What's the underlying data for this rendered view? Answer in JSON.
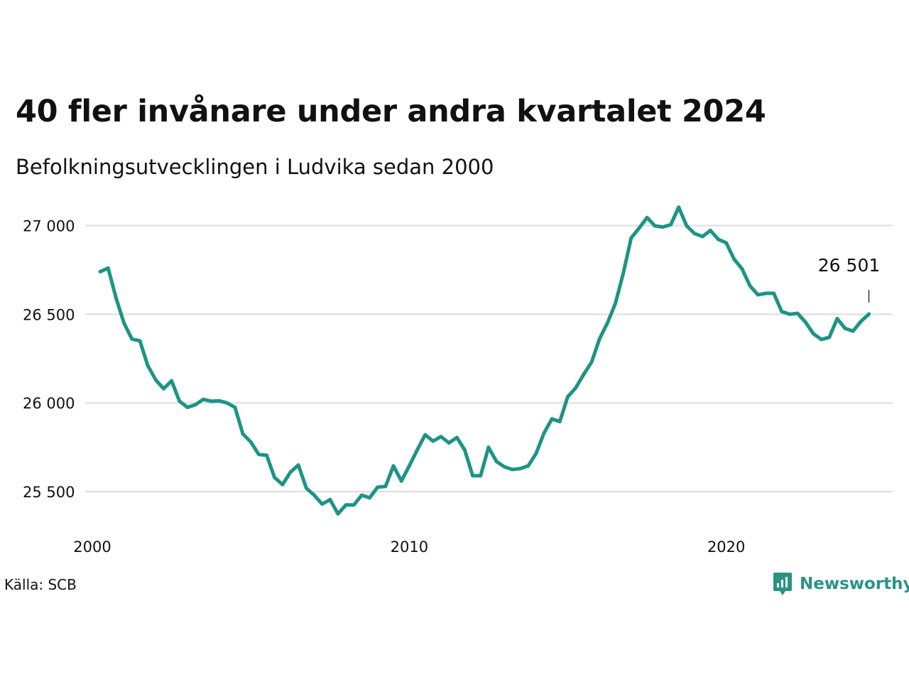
{
  "title": "40 fler invånare under andra kvartalet 2024",
  "subtitle": "Befolkningsutvecklingen i Ludvika sedan 2000",
  "source": "Källa: SCB",
  "brand": "Newsworthy",
  "colors": {
    "line": "#1d9485",
    "grid": "#dddddd",
    "brand": "#2a9384",
    "text": "#111111"
  },
  "chart_data": {
    "type": "line",
    "xlabel": "",
    "ylabel": "",
    "xlim": [
      2000,
      2025.25
    ],
    "ylim": [
      25300,
      27150
    ],
    "x_ticks": [
      2000,
      2010,
      2020
    ],
    "y_ticks": [
      {
        "value": 25500,
        "label": "25 500"
      },
      {
        "value": 26000,
        "label": "26 000"
      },
      {
        "value": 26500,
        "label": "26 500"
      },
      {
        "value": 27000,
        "label": "27 000"
      }
    ],
    "grid": true,
    "end_label": "26 501",
    "series": [
      {
        "x": [
          2000.25,
          2000.5,
          2000.75,
          2001,
          2001.25,
          2001.5,
          2001.75,
          2002,
          2002.25,
          2002.5,
          2002.75,
          2003,
          2003.25,
          2003.5,
          2003.75,
          2004,
          2004.25,
          2004.5,
          2004.75,
          2005,
          2005.25,
          2005.5,
          2005.75,
          2006,
          2006.25,
          2006.5,
          2006.75,
          2007,
          2007.25,
          2007.5,
          2007.75,
          2008,
          2008.25,
          2008.5,
          2008.75,
          2009,
          2009.25,
          2009.5,
          2009.75,
          2010,
          2010.25,
          2010.5,
          2010.75,
          2011,
          2011.25,
          2011.5,
          2011.75,
          2012,
          2012.25,
          2012.5,
          2012.75,
          2013,
          2013.25,
          2013.5,
          2013.75,
          2014,
          2014.25,
          2014.5,
          2014.75,
          2015,
          2015.25,
          2015.5,
          2015.75,
          2016,
          2016.25,
          2016.5,
          2016.75,
          2017,
          2017.25,
          2017.5,
          2017.75,
          2018,
          2018.25,
          2018.5,
          2018.75,
          2019,
          2019.25,
          2019.5,
          2019.75,
          2020,
          2020.25,
          2020.5,
          2020.75,
          2021,
          2021.25,
          2021.5,
          2021.75,
          2022,
          2022.25,
          2022.5,
          2022.75,
          2023,
          2023.25,
          2023.5,
          2023.75,
          2024,
          2024.25,
          2024.5
        ],
        "values": [
          26740,
          26760,
          26590,
          26450,
          26360,
          26350,
          26210,
          26130,
          26080,
          26125,
          26010,
          25975,
          25990,
          26020,
          26010,
          26012,
          26000,
          25975,
          25825,
          25780,
          25710,
          25705,
          25580,
          25540,
          25610,
          25650,
          25520,
          25480,
          25430,
          25455,
          25375,
          25425,
          25425,
          25480,
          25465,
          25525,
          25530,
          25645,
          25560,
          25645,
          25735,
          25820,
          25785,
          25810,
          25775,
          25805,
          25735,
          25590,
          25590,
          25750,
          25670,
          25640,
          25625,
          25630,
          25645,
          25715,
          25830,
          25910,
          25895,
          26035,
          26085,
          26160,
          26230,
          26360,
          26450,
          26560,
          26730,
          26930,
          26985,
          27045,
          26998,
          26992,
          27005,
          27103,
          26998,
          26955,
          26938,
          26972,
          26922,
          26902,
          26810,
          26755,
          26660,
          26610,
          26618,
          26618,
          26515,
          26500,
          26505,
          26455,
          26390,
          26358,
          26370,
          26475,
          26420,
          26405,
          26460,
          26501
        ]
      }
    ]
  }
}
